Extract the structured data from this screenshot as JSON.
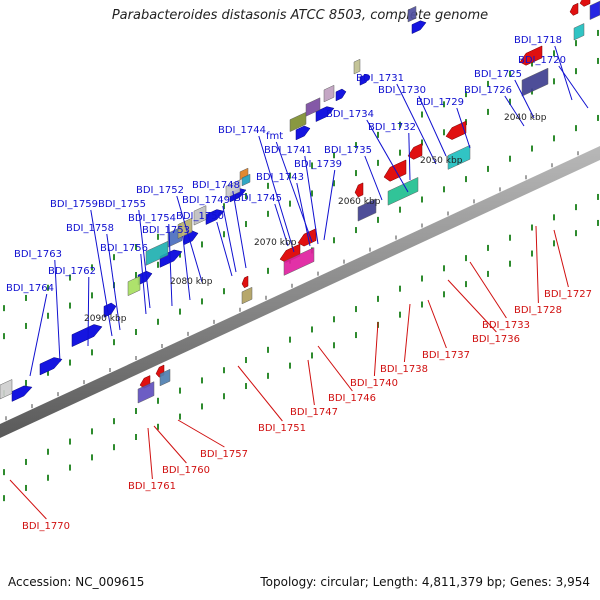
{
  "title": "Parabacteroides distasonis ATCC 8503, complete genome",
  "footer": {
    "accession": "Accession: NC_009615",
    "summary": "Topology: circular; Length: 4,811,379 bp; Genes: 3,954"
  },
  "colors": {
    "forward_label": "#1010d0",
    "reverse_label": "#d01010",
    "backbone": "#7a7a7a",
    "tick": "#2e8b2e"
  },
  "kbp_markers": [
    "2040 kbp",
    "2050 kbp",
    "2060 kbp",
    "2070 kbp",
    "2080 kbp",
    "2090 kbp"
  ],
  "forward_gene_labels": [
    "BDI_1718",
    "BDI_1720",
    "BDI_1725",
    "BDI_1726",
    "BDI_1729",
    "BDI_1730",
    "BDI_1731",
    "BDI_1732",
    "BDI_1734",
    "BDI_1735",
    "BDI_1739",
    "BDI_1741",
    "fmt",
    "BDI_1743",
    "BDI_1744",
    "BDI_1745",
    "BDI_1748",
    "BDI_1749",
    "BDI_1750",
    "BDI_1752",
    "BDI_1753",
    "BDI_1754",
    "BDI_1755",
    "BDI_1756",
    "BDI_1758",
    "BDI_1759",
    "BDI_1762",
    "BDI_1763",
    "BDI_1764"
  ],
  "reverse_gene_labels": [
    "BDI_1727",
    "BDI_1728",
    "BDI_1733",
    "BDI_1736",
    "BDI_1737",
    "BDI_1738",
    "BDI_1740",
    "BDI_1746",
    "BDI_1747",
    "BDI_1751",
    "BDI_1757",
    "BDI_1760",
    "BDI_1761",
    "BDI_1770"
  ]
}
